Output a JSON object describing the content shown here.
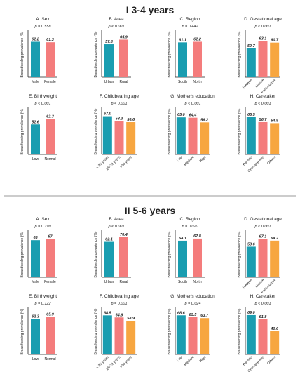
{
  "sections": [
    {
      "title": "I 3-4 years",
      "charts": [
        {
          "type": "bar",
          "title": "A. Sex",
          "p_text": "p = 0.558",
          "ylabel": "Breastfeeding prevalence (%)",
          "ylim": [
            0,
            80
          ],
          "categories": [
            "Male",
            "Female"
          ],
          "values": [
            62.2,
            61.3
          ],
          "value_labels": [
            "62.2",
            "61.3"
          ],
          "colors": [
            "#1a9db0",
            "#f47c7c"
          ],
          "rotate": false
        },
        {
          "type": "bar",
          "title": "B. Area",
          "p_text": "p < 0.001",
          "ylabel": "Breastfeeding prevalence (%)",
          "ylim": [
            0,
            80
          ],
          "categories": [
            "Urban",
            "Rural"
          ],
          "values": [
            57.8,
            65.9
          ],
          "value_labels": [
            "57.8",
            "65.9"
          ],
          "colors": [
            "#1a9db0",
            "#f47c7c"
          ],
          "rotate": false
        },
        {
          "type": "bar",
          "title": "C. Region",
          "p_text": "p = 0.442",
          "ylabel": "Breastfeeding prevalence (%)",
          "ylim": [
            0,
            80
          ],
          "categories": [
            "South",
            "North"
          ],
          "values": [
            61.1,
            62.2
          ],
          "value_labels": [
            "61.1",
            "62.2"
          ],
          "colors": [
            "#1a9db0",
            "#f47c7c"
          ],
          "rotate": false
        },
        {
          "type": "bar",
          "title": "D. Gestational age",
          "p_text": "p < 0.001",
          "ylabel": "Breastfeeding prevalence (%)",
          "ylim": [
            0,
            80
          ],
          "categories": [
            "Preterm",
            "Mature",
            "Post-mature"
          ],
          "values": [
            50.7,
            63.1,
            60.7
          ],
          "value_labels": [
            "50.7",
            "63.1",
            "60.7"
          ],
          "colors": [
            "#1a9db0",
            "#f47c7c",
            "#f7a640"
          ],
          "rotate": true
        },
        {
          "type": "bar",
          "title": "E. Birthweight",
          "p_text": "p < 0.001",
          "ylabel": "Breastfeeding prevalence (%)",
          "ylim": [
            0,
            80
          ],
          "categories": [
            "Low",
            "Normal"
          ],
          "values": [
            52.6,
            62.3
          ],
          "value_labels": [
            "52.6",
            "62.3"
          ],
          "colors": [
            "#1a9db0",
            "#f47c7c"
          ],
          "rotate": false
        },
        {
          "type": "bar",
          "title": "F. Childbearing age",
          "p_text": "p < 0.001",
          "ylabel": "Breastfeeding prevalence (%)",
          "ylim": [
            0,
            80
          ],
          "categories": [
            "< 25 years",
            "25-29 years",
            ">30 years"
          ],
          "values": [
            67.0,
            58.3,
            56.6
          ],
          "value_labels": [
            "67.0",
            "58.3",
            "56.6"
          ],
          "colors": [
            "#1a9db0",
            "#f47c7c",
            "#f7a640"
          ],
          "rotate": true
        },
        {
          "type": "bar",
          "title": "G. Mother's education",
          "p_text": "p < 0.001",
          "ylabel": "Breastfeeding prevalence (%)",
          "ylim": [
            0,
            80
          ],
          "categories": [
            "Low",
            "Medium",
            "High"
          ],
          "values": [
            65.0,
            64.4,
            56.2
          ],
          "value_labels": [
            "65.0",
            "64.4",
            "56.2"
          ],
          "colors": [
            "#1a9db0",
            "#f47c7c",
            "#f7a640"
          ],
          "rotate": true
        },
        {
          "type": "bar",
          "title": "H. Caretaker",
          "p_text": "p < 0.001",
          "ylabel": "Breastfeeding prevalence (%)",
          "ylim": [
            0,
            80
          ],
          "categories": [
            "Parents",
            "Grandparents",
            "Others"
          ],
          "values": [
            65.5,
            56.7,
            54.9
          ],
          "value_labels": [
            "65.5",
            "56.7",
            "54.9"
          ],
          "colors": [
            "#1a9db0",
            "#f47c7c",
            "#f7a640"
          ],
          "rotate": true
        }
      ]
    },
    {
      "title": "II 5-6 years",
      "charts": [
        {
          "type": "bar",
          "title": "A. Sex",
          "p_text": "p = 0.190",
          "ylabel": "Breastfeeding prevalence (%)",
          "ylim": [
            0,
            80
          ],
          "categories": [
            "Male",
            "Female"
          ],
          "values": [
            65,
            67
          ],
          "value_labels": [
            "65",
            "67"
          ],
          "colors": [
            "#1a9db0",
            "#f47c7c"
          ],
          "rotate": false
        },
        {
          "type": "bar",
          "title": "B. Area",
          "p_text": "p < 0.001",
          "ylabel": "Breastfeeding prevalence (%)",
          "ylim": [
            0,
            80
          ],
          "categories": [
            "Urban",
            "Rural"
          ],
          "values": [
            62.1,
            70.4
          ],
          "value_labels": [
            "62.1",
            "70.4"
          ],
          "colors": [
            "#1a9db0",
            "#f47c7c"
          ],
          "rotate": false
        },
        {
          "type": "bar",
          "title": "C. Region",
          "p_text": "p = 0.020",
          "ylabel": "Breastfeeding prevalence (%)",
          "ylim": [
            0,
            80
          ],
          "categories": [
            "South",
            "North"
          ],
          "values": [
            64.1,
            67.8
          ],
          "value_labels": [
            "64.1",
            "67.8"
          ],
          "colors": [
            "#1a9db0",
            "#f47c7c"
          ],
          "rotate": false
        },
        {
          "type": "bar",
          "title": "D. Gestational age",
          "p_text": "p < 0.001",
          "ylabel": "Breastfeeding prevalence (%)",
          "ylim": [
            0,
            80
          ],
          "categories": [
            "Preterm",
            "Mature",
            "Post-mature"
          ],
          "values": [
            53.6,
            67.1,
            64.2
          ],
          "value_labels": [
            "53.6",
            "67.1",
            "64.2"
          ],
          "colors": [
            "#1a9db0",
            "#f47c7c",
            "#f7a640"
          ],
          "rotate": true
        },
        {
          "type": "bar",
          "title": "E. Birthweight",
          "p_text": "p = 0.122",
          "ylabel": "Breastfeeding prevalence (%)",
          "ylim": [
            0,
            80
          ],
          "categories": [
            "Low",
            "Normal"
          ],
          "values": [
            62.3,
            65.9
          ],
          "value_labels": [
            "62.3",
            "65.9"
          ],
          "colors": [
            "#1a9db0",
            "#f47c7c"
          ],
          "rotate": false
        },
        {
          "type": "bar",
          "title": "F. Childbearing age",
          "p_text": "p = 0.001",
          "ylabel": "Breastfeeding prevalence (%)",
          "ylim": [
            0,
            80
          ],
          "categories": [
            "< 25 years",
            "25-29 years",
            ">30 years"
          ],
          "values": [
            68.5,
            64.9,
            58.9
          ],
          "value_labels": [
            "68.5",
            "64.9",
            "58.9"
          ],
          "colors": [
            "#1a9db0",
            "#f47c7c",
            "#f7a640"
          ],
          "rotate": true
        },
        {
          "type": "bar",
          "title": "G. Mother's education",
          "p_text": "p = 0.024",
          "ylabel": "Breastfeeding prevalence (%)",
          "ylim": [
            0,
            80
          ],
          "categories": [
            "Low",
            "Medium",
            "High"
          ],
          "values": [
            68.6,
            65.5,
            63.7
          ],
          "value_labels": [
            "68.6",
            "65.5",
            "63.7"
          ],
          "colors": [
            "#1a9db0",
            "#f47c7c",
            "#f7a640"
          ],
          "rotate": true
        },
        {
          "type": "bar",
          "title": "H. Caretaker",
          "p_text": "p < 0.001",
          "ylabel": "Breastfeeding prevalence (%)",
          "ylim": [
            0,
            80
          ],
          "categories": [
            "Parents",
            "Grandparents",
            "Others"
          ],
          "values": [
            69.0,
            61.8,
            40.6
          ],
          "value_labels": [
            "69.0",
            "61.8",
            "40.6"
          ],
          "colors": [
            "#1a9db0",
            "#f47c7c",
            "#f7a640"
          ],
          "rotate": true
        }
      ]
    }
  ],
  "colors": {
    "separator": "#999999",
    "axis": "#222222"
  }
}
